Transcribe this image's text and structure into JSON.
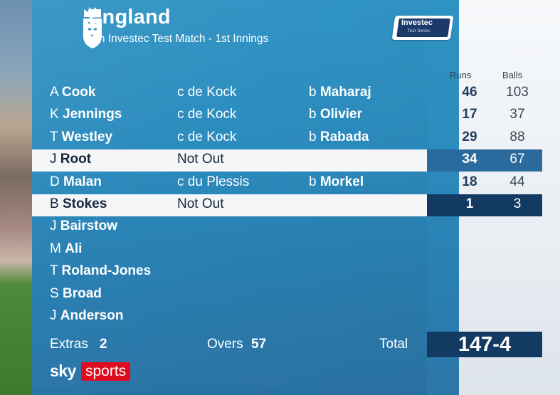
{
  "header": {
    "team": "England",
    "match": "4th Investec Test Match - 1st Innings",
    "sponsor": "Investec",
    "sponsor_sub": "Test Series"
  },
  "columns": {
    "runs": "Runs",
    "balls": "Balls"
  },
  "batters": [
    {
      "initial": "A",
      "surname": "Cook",
      "dismissal": "c de Kock",
      "bowler_prefix": "b",
      "bowler": "Maharaj",
      "runs": "46",
      "balls": "103",
      "highlight": false
    },
    {
      "initial": "K",
      "surname": "Jennings",
      "dismissal": "c de Kock",
      "bowler_prefix": "b",
      "bowler": "Olivier",
      "runs": "17",
      "balls": "37",
      "highlight": false
    },
    {
      "initial": "T",
      "surname": "Westley",
      "dismissal": "c de Kock",
      "bowler_prefix": "b",
      "bowler": "Rabada",
      "runs": "29",
      "balls": "88",
      "highlight": false
    },
    {
      "initial": "J",
      "surname": "Root",
      "dismissal": "Not Out",
      "bowler_prefix": "",
      "bowler": "",
      "runs": "34",
      "balls": "67",
      "highlight": true
    },
    {
      "initial": "D",
      "surname": "Malan",
      "dismissal": "c du Plessis",
      "bowler_prefix": "b",
      "bowler": "Morkel",
      "runs": "18",
      "balls": "44",
      "highlight": false
    },
    {
      "initial": "B",
      "surname": "Stokes",
      "dismissal": "Not Out",
      "bowler_prefix": "",
      "bowler": "",
      "runs": "1",
      "balls": "3",
      "highlight": true
    },
    {
      "initial": "J",
      "surname": "Bairstow",
      "dismissal": "",
      "bowler_prefix": "",
      "bowler": "",
      "runs": "",
      "balls": "",
      "highlight": false
    },
    {
      "initial": "M",
      "surname": "Ali",
      "dismissal": "",
      "bowler_prefix": "",
      "bowler": "",
      "runs": "",
      "balls": "",
      "highlight": false
    },
    {
      "initial": "T",
      "surname": "Roland-Jones",
      "dismissal": "",
      "bowler_prefix": "",
      "bowler": "",
      "runs": "",
      "balls": "",
      "highlight": false
    },
    {
      "initial": "S",
      "surname": "Broad",
      "dismissal": "",
      "bowler_prefix": "",
      "bowler": "",
      "runs": "",
      "balls": "",
      "highlight": false
    },
    {
      "initial": "J",
      "surname": "Anderson",
      "dismissal": "",
      "bowler_prefix": "",
      "bowler": "",
      "runs": "",
      "balls": "",
      "highlight": false
    }
  ],
  "footer": {
    "extras_label": "Extras",
    "extras_value": "2",
    "overs_label": "Overs",
    "overs_value": "57",
    "total_label": "Total",
    "total_value": "147-4"
  },
  "broadcaster": {
    "sky": "sky",
    "sports": "sports"
  },
  "corner_sign": "S",
  "colors": {
    "panel_blue": "#2b8bbd",
    "navy": "#123a63",
    "mid_blue": "#2b6a9c",
    "sky_red": "#e10b1f"
  }
}
